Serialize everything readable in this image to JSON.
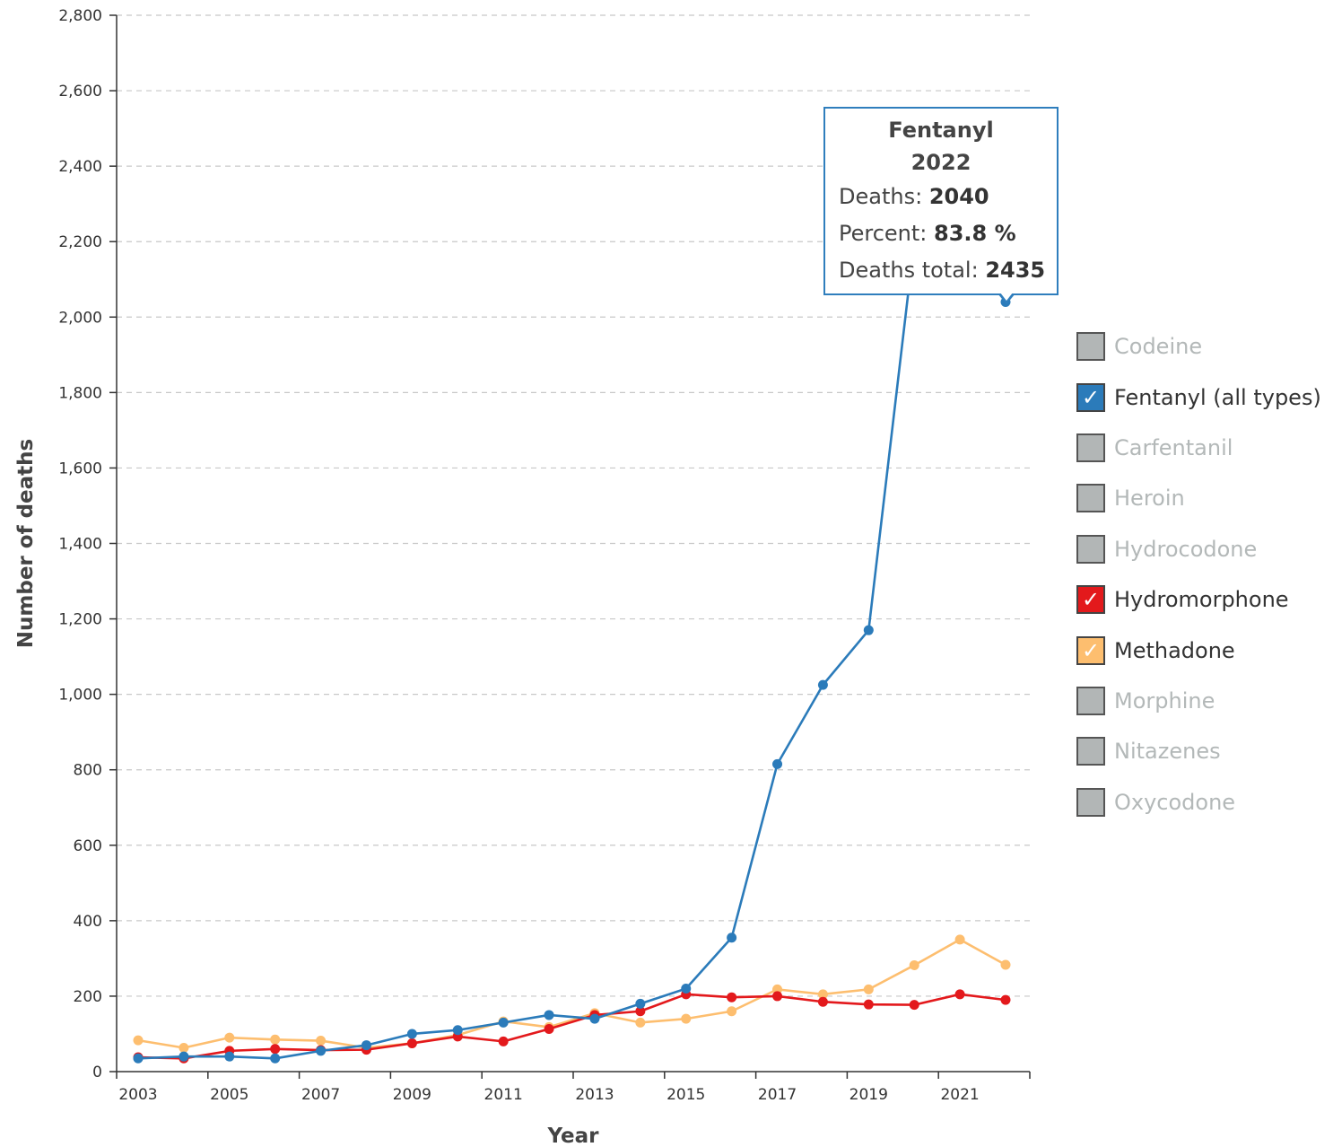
{
  "chart_data": {
    "type": "line",
    "xlabel": "Year",
    "ylabel": "Number of deaths",
    "ylim": [
      0,
      2800
    ],
    "yticks": [
      0,
      200,
      400,
      600,
      800,
      1000,
      1200,
      1400,
      1600,
      1800,
      2000,
      2200,
      2400,
      2600,
      2800
    ],
    "ytick_labels": [
      "0",
      "200",
      "400",
      "600",
      "800",
      "1,000",
      "1,200",
      "1,400",
      "1,600",
      "1,800",
      "2,000",
      "2,200",
      "2,400",
      "2,600",
      "2,800"
    ],
    "xtick_labels": [
      "2003",
      "2005",
      "2007",
      "2009",
      "2011",
      "2013",
      "2015",
      "2017",
      "2019",
      "2021"
    ],
    "x": [
      2003,
      2004,
      2005,
      2006,
      2007,
      2008,
      2009,
      2010,
      2011,
      2012,
      2013,
      2014,
      2015,
      2016,
      2017,
      2018,
      2019,
      2020,
      2021,
      2022
    ],
    "grid": "horizontal dashed",
    "legend_position": "right",
    "series": [
      {
        "name": "Fentanyl (all types)",
        "color": "#2b7bba",
        "values": [
          35,
          40,
          40,
          35,
          55,
          70,
          100,
          110,
          130,
          150,
          140,
          180,
          220,
          355,
          815,
          1025,
          1170,
          2200,
          2390,
          2040
        ]
      },
      {
        "name": "Hydromorphone",
        "color": "#e3191c",
        "values": [
          38,
          35,
          55,
          60,
          57,
          58,
          75,
          93,
          80,
          113,
          150,
          160,
          205,
          197,
          200,
          185,
          178,
          177,
          205,
          190
        ]
      },
      {
        "name": "Methadone",
        "color": "#fdbe6f",
        "values": [
          83,
          63,
          90,
          85,
          82,
          63,
          75,
          97,
          133,
          118,
          155,
          130,
          140,
          160,
          218,
          205,
          218,
          282,
          350,
          283
        ]
      }
    ]
  },
  "legend": [
    {
      "label": "Codeine",
      "checked": false,
      "color": "#b2b6b6"
    },
    {
      "label": "Fentanyl (all types)",
      "checked": true,
      "color": "#2b7bba"
    },
    {
      "label": "Carfentanil",
      "checked": false,
      "color": "#b2b6b6"
    },
    {
      "label": "Heroin",
      "checked": false,
      "color": "#b2b6b6"
    },
    {
      "label": "Hydrocodone",
      "checked": false,
      "color": "#b2b6b6"
    },
    {
      "label": "Hydromorphone",
      "checked": true,
      "color": "#e3191c"
    },
    {
      "label": "Methadone",
      "checked": true,
      "color": "#fdbe6f"
    },
    {
      "label": "Morphine",
      "checked": false,
      "color": "#b2b6b6"
    },
    {
      "label": "Nitazenes",
      "checked": false,
      "color": "#b2b6b6"
    },
    {
      "label": "Oxycodone",
      "checked": false,
      "color": "#b2b6b6"
    }
  ],
  "tooltip": {
    "series": "Fentanyl",
    "year": "2022",
    "deaths_label": "Deaths:",
    "deaths_value": "2040",
    "percent_label": "Percent:",
    "percent_value": "83.8 %",
    "total_label": "Deaths total:",
    "total_value": "2435"
  }
}
